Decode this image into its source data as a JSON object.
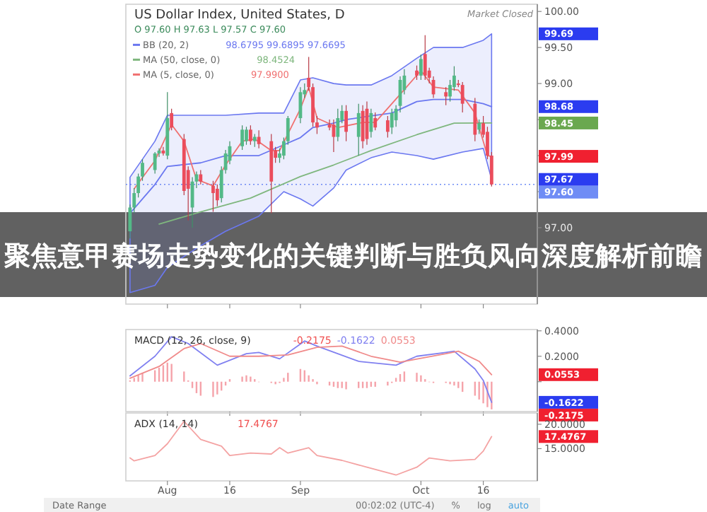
{
  "chart_data": [
    {
      "type": "candlestick",
      "title": "US Dollar Index, United States, D",
      "subtitle": "O 97.60 H 97.63 L 97.57 C 97.60",
      "legend": "top left",
      "tick_labels": "y",
      "annotations": [
        "Market Closed",
        "聚焦意甲赛场走势变化的关键判断与胜负风向深度解析前瞻",
        "98.6795 99.6895 97.6695",
        "98.4524",
        "97.9900",
        "99.69",
        "98.68",
        "97.67",
        "98.45",
        "97.99"
      ],
      "xlim": [
        "--07-22",
        "--10-29"
      ],
      "ylim": [
        95.94,
        100.1
      ],
      "xticks": [
        {
          "value": "--08-01",
          "label": null
        },
        {
          "value": "--08-16",
          "label": null
        },
        {
          "value": "--09-02",
          "label": null
        },
        {
          "value": "--10-01",
          "label": null
        },
        {
          "value": "--10-16",
          "label": null
        }
      ],
      "yticks": [
        {
          "value": 100,
          "label": "100.00"
        },
        {
          "value": 99.5,
          "label": "99.50"
        },
        {
          "value": 99,
          "label": "99.00"
        },
        {
          "value": 98.5,
          "label": null
        },
        {
          "value": 98,
          "label": null
        },
        {
          "value": 97.5,
          "label": null
        },
        {
          "value": 97,
          "label": "97.00"
        }
      ],
      "ref_lines": [
        {
          "axis": "y",
          "value": 97.6,
          "label": "97.60",
          "color": "#6f8cf5",
          "line_style": "dotted"
        }
      ],
      "x": [
        "--07-23",
        "--07-24",
        "--07-25",
        "--07-26",
        "--07-29",
        "--07-30",
        "--07-31",
        "--08-01",
        "--08-02",
        "--08-05",
        "--08-06",
        "--08-07",
        "--08-08",
        "--08-09",
        "--08-12",
        "--08-13",
        "--08-14",
        "--08-15",
        "--08-16",
        "--08-19",
        "--08-20",
        "--08-21",
        "--08-22",
        "--08-23",
        "--08-26",
        "--08-27",
        "--08-28",
        "--08-29",
        "--08-30",
        "--09-02",
        "--09-03",
        "--09-04",
        "--09-05",
        "--09-06",
        "--09-09",
        "--09-10",
        "--09-11",
        "--09-12",
        "--09-13",
        "--09-16",
        "--09-17",
        "--09-18",
        "--09-19",
        "--09-20",
        "--09-23",
        "--09-24",
        "--09-25",
        "--09-26",
        "--09-27",
        "--09-30",
        "--10-01",
        "--10-02",
        "--10-03",
        "--10-04",
        "--10-07",
        "--10-08",
        "--10-09",
        "--10-10",
        "--10-11",
        "--10-14",
        "--10-15",
        "--10-16",
        "--10-17",
        "--10-18"
      ],
      "ohlc": [
        [
          96.95,
          97.32,
          96.85,
          97.28
        ],
        [
          97.28,
          97.55,
          97.2,
          97.48
        ],
        [
          97.48,
          97.75,
          97.42,
          97.71
        ],
        [
          97.71,
          97.95,
          97.65,
          97.9
        ],
        [
          97.8,
          98.05,
          97.75,
          98.03
        ],
        [
          98.03,
          98.1,
          97.98,
          98.07
        ],
        [
          98.07,
          98.12,
          98.0,
          98.03
        ],
        [
          98.0,
          98.88,
          97.95,
          98.52
        ],
        [
          98.59,
          98.65,
          98.35,
          98.39
        ],
        [
          98.23,
          98.3,
          97.45,
          97.51
        ],
        [
          97.8,
          97.85,
          97.1,
          97.54
        ],
        [
          97.28,
          97.7,
          97.0,
          97.64
        ],
        [
          97.64,
          97.78,
          97.55,
          97.74
        ],
        [
          97.74,
          97.8,
          97.6,
          97.64
        ],
        [
          97.58,
          97.65,
          97.22,
          97.48
        ],
        [
          97.54,
          97.6,
          97.3,
          97.38
        ],
        [
          97.41,
          97.85,
          97.35,
          97.8
        ],
        [
          97.8,
          98.08,
          97.75,
          98.03
        ],
        [
          97.93,
          98.2,
          97.88,
          98.13
        ],
        [
          98.13,
          98.42,
          98.08,
          98.36
        ],
        [
          98.2,
          98.4,
          98.15,
          98.36
        ],
        [
          98.36,
          98.42,
          98.15,
          98.2
        ],
        [
          98.2,
          98.3,
          98.12,
          98.26
        ],
        [
          98.26,
          98.35,
          98.1,
          98.16
        ],
        [
          98.2,
          98.3,
          97.2,
          97.64
        ],
        [
          98.07,
          98.12,
          97.9,
          97.97
        ],
        [
          97.97,
          98.1,
          97.9,
          98.03
        ],
        [
          98.0,
          98.25,
          97.95,
          98.2
        ],
        [
          98.2,
          98.55,
          98.15,
          98.52
        ],
        [
          98.52,
          98.95,
          98.45,
          98.88
        ],
        [
          98.85,
          99.0,
          98.8,
          98.91
        ],
        [
          99.08,
          99.37,
          98.9,
          98.95
        ],
        [
          98.95,
          99.0,
          98.4,
          98.46
        ],
        [
          98.46,
          98.55,
          98.3,
          98.39
        ],
        [
          98.43,
          98.5,
          98.35,
          98.39
        ],
        [
          98.43,
          98.5,
          98.05,
          98.26
        ],
        [
          98.26,
          98.65,
          98.2,
          98.52
        ],
        [
          98.49,
          98.7,
          98.45,
          98.62
        ],
        [
          98.62,
          98.7,
          98.2,
          98.33
        ],
        [
          98.26,
          98.72,
          98.0,
          98.59
        ],
        [
          98.62,
          98.7,
          98.1,
          98.2
        ],
        [
          98.65,
          98.75,
          98.15,
          98.23
        ],
        [
          98.33,
          98.65,
          98.25,
          98.59
        ],
        [
          98.52,
          98.6,
          98.35,
          98.39
        ],
        [
          98.49,
          98.55,
          98.25,
          98.33
        ],
        [
          98.39,
          98.65,
          98.3,
          98.59
        ],
        [
          98.49,
          98.7,
          98.4,
          98.65
        ],
        [
          98.69,
          99.1,
          98.6,
          99.05
        ],
        [
          98.91,
          99.2,
          98.85,
          99.11
        ],
        [
          99.18,
          99.25,
          99.05,
          99.11
        ],
        [
          99.11,
          99.4,
          99.05,
          99.34
        ],
        [
          99.41,
          99.67,
          99.05,
          99.11
        ],
        [
          99.18,
          99.22,
          99.0,
          99.08
        ],
        [
          99.05,
          99.1,
          98.8,
          98.85
        ],
        [
          98.88,
          98.95,
          98.7,
          98.82
        ],
        [
          98.82,
          99.05,
          98.75,
          98.98
        ],
        [
          98.95,
          99.24,
          98.9,
          99.11
        ],
        [
          99.0,
          99.05,
          98.95,
          98.98
        ],
        [
          98.98,
          99.02,
          98.6,
          98.72
        ],
        [
          98.72,
          98.8,
          98.2,
          98.29
        ],
        [
          98.36,
          98.5,
          98.3,
          98.45
        ],
        [
          98.45,
          98.55,
          98.25,
          98.29
        ],
        [
          98.33,
          98.4,
          97.95,
          98.0
        ],
        [
          98.0,
          98.05,
          97.57,
          97.6
        ]
      ],
      "series": [
        {
          "type": "line",
          "name": "BB (20, 2)",
          "color": "#6b78f0",
          "x": [
            "--07-23",
            "--07-29",
            "--08-01",
            "--08-09",
            "--08-15",
            "--08-23",
            "--08-29",
            "--09-02",
            "--09-05",
            "--09-10",
            "--09-13",
            "--09-19",
            "--09-24",
            "--09-30",
            "--10-04",
            "--10-11",
            "--10-16",
            "--10-18"
          ],
          "values": [
            97.2,
            97.6,
            97.85,
            97.9,
            98.0,
            98.0,
            98.15,
            98.25,
            98.39,
            98.45,
            98.5,
            98.55,
            98.59,
            98.75,
            98.78,
            98.78,
            98.72,
            98.6795
          ],
          "upper": [
            97.7,
            98.2,
            98.56,
            98.56,
            98.56,
            98.59,
            98.59,
            99.05,
            99.08,
            99.0,
            98.98,
            98.98,
            99.11,
            99.35,
            99.5,
            99.5,
            99.6,
            99.6895
          ],
          "lower": [
            96.1,
            96.2,
            96.45,
            96.75,
            96.95,
            97.16,
            97.5,
            97.4,
            97.3,
            97.55,
            97.8,
            97.97,
            98.05,
            98.0,
            97.95,
            98.05,
            98.1,
            97.6695
          ]
        },
        {
          "type": "line",
          "name": "MA (50, close, 0)",
          "color": "#7fb77e",
          "x": [
            "--07-30",
            "--08-09",
            "--08-21",
            "--09-02",
            "--09-10",
            "--09-19",
            "--09-30",
            "--10-09",
            "--10-18"
          ],
          "values": [
            97.05,
            97.22,
            97.41,
            97.71,
            97.87,
            98.07,
            98.29,
            98.45,
            98.4524
          ]
        },
        {
          "type": "line",
          "name": "MA (5, close, 0)",
          "color": "#f07070",
          "x": [
            "--07-24",
            "--07-29",
            "--08-02",
            "--08-05",
            "--08-08",
            "--08-12",
            "--08-15",
            "--08-19",
            "--08-22",
            "--08-26",
            "--08-28",
            "--09-02",
            "--09-04",
            "--09-06",
            "--09-11",
            "--09-17",
            "--09-20",
            "--09-26",
            "--10-01",
            "--10-04",
            "--10-10",
            "--10-14",
            "--10-17",
            "--10-18"
          ],
          "values": [
            97.54,
            97.93,
            98.43,
            98.2,
            97.67,
            97.58,
            97.87,
            98.2,
            98.23,
            98.07,
            98.07,
            98.65,
            98.95,
            98.52,
            98.39,
            98.46,
            98.46,
            98.85,
            99.18,
            98.95,
            98.91,
            98.59,
            98.0,
            97.99
          ]
        }
      ]
    },
    {
      "type": "line",
      "title": "MACD (12, 26, close, 9)",
      "tick_labels": "y",
      "annotations": [
        "-0.2175",
        "-0.1622",
        "0.0553",
        "-0.2175",
        "-0.1622",
        "0.0553"
      ],
      "xlim": [
        "--07-22",
        "--10-29"
      ],
      "ylim": [
        -0.235,
        0.41
      ],
      "xticks": [
        {
          "value": "--08-01",
          "label": null
        },
        {
          "value": "--08-16",
          "label": null
        },
        {
          "value": "--09-02",
          "label": null
        },
        {
          "value": "--10-01",
          "label": null
        },
        {
          "value": "--10-16",
          "label": null
        }
      ],
      "yticks": [
        {
          "value": 0.4,
          "label": "0.4000"
        },
        {
          "value": 0.2,
          "label": "0.2000"
        },
        {
          "value": 0,
          "label": null
        }
      ],
      "x": [
        "--07-23",
        "--07-24",
        "--07-25",
        "--07-26",
        "--07-29",
        "--07-30",
        "--07-31",
        "--08-01",
        "--08-02",
        "--08-05",
        "--08-06",
        "--08-07",
        "--08-08",
        "--08-09",
        "--08-12",
        "--08-13",
        "--08-14",
        "--08-15",
        "--08-16",
        "--08-19",
        "--08-20",
        "--08-21",
        "--08-22",
        "--08-23",
        "--08-26",
        "--08-27",
        "--08-28",
        "--08-29",
        "--08-30",
        "--09-02",
        "--09-03",
        "--09-04",
        "--09-05",
        "--09-06",
        "--09-09",
        "--09-10",
        "--09-11",
        "--09-12",
        "--09-13",
        "--09-16",
        "--09-17",
        "--09-18",
        "--09-19",
        "--09-20",
        "--09-23",
        "--09-24",
        "--09-25",
        "--09-26",
        "--09-27",
        "--09-30",
        "--10-01",
        "--10-02",
        "--10-03",
        "--10-04",
        "--10-07",
        "--10-08",
        "--10-09",
        "--10-10",
        "--10-11",
        "--10-14",
        "--10-15",
        "--10-16",
        "--10-17",
        "--10-18"
      ],
      "series": [
        {
          "type": "bar",
          "color": "#f5a3aa",
          "values": [
            0.01,
            0.03,
            0.05,
            0.07,
            0.09,
            0.11,
            0.13,
            0.15,
            0.14,
            0.08,
            0.01,
            -0.05,
            -0.09,
            -0.11,
            -0.12,
            -0.1,
            -0.07,
            -0.03,
            0.02,
            0.04,
            0.05,
            0.04,
            0.02,
            0.0,
            -0.01,
            -0.02,
            -0.01,
            0.03,
            0.07,
            0.1,
            0.09,
            0.05,
            0.02,
            -0.02,
            -0.03,
            -0.04,
            -0.05,
            -0.05,
            -0.06,
            -0.05,
            -0.05,
            -0.05,
            -0.04,
            -0.04,
            -0.03,
            -0.01,
            0.03,
            0.06,
            0.08,
            0.07,
            0.05,
            0.02,
            0.0,
            -0.01,
            -0.01,
            -0.02,
            -0.03,
            -0.05,
            -0.08,
            -0.11,
            -0.14,
            -0.17,
            -0.2,
            -0.2175
          ]
        },
        {
          "type": "line",
          "color": "#8080f0",
          "x": [
            "--07-23",
            "--07-29",
            "--08-02",
            "--08-06",
            "--08-13",
            "--08-20",
            "--08-23",
            "--08-28",
            "--09-03",
            "--09-06",
            "--09-16",
            "--09-25",
            "--09-30",
            "--10-07",
            "--10-09",
            "--10-14",
            "--10-16",
            "--10-18"
          ],
          "values": [
            0.046,
            0.2,
            0.354,
            0.3,
            0.13,
            0.22,
            0.23,
            0.18,
            0.32,
            0.28,
            0.16,
            0.13,
            0.2,
            0.23,
            0.24,
            0.1,
            0.01,
            -0.1622
          ]
        },
        {
          "type": "line",
          "color": "#f08a8a",
          "x": [
            "--07-23",
            "--07-30",
            "--08-05",
            "--08-09",
            "--08-16",
            "--08-23",
            "--08-30",
            "--09-06",
            "--09-12",
            "--09-19",
            "--09-26",
            "--10-07",
            "--10-10",
            "--10-15",
            "--10-18"
          ],
          "values": [
            0.027,
            0.12,
            0.26,
            0.3,
            0.2,
            0.2,
            0.21,
            0.27,
            0.28,
            0.2,
            0.154,
            0.22,
            0.24,
            0.16,
            0.0553
          ]
        }
      ]
    },
    {
      "type": "line",
      "title": "ADX (14, 14)",
      "annotations": [
        "17.4767",
        "17.4767",
        "Date Range",
        "00:02:02 (UTC-4)",
        "%",
        "log",
        "auto"
      ],
      "xlim": [
        "--07-22",
        "--10-29"
      ],
      "ylim": [
        8.4,
        22.3
      ],
      "xticks": [
        {
          "value": "--08-01",
          "label": "Aug"
        },
        {
          "value": "--08-16",
          "label": "16"
        },
        {
          "value": "--09-02",
          "label": "Sep"
        },
        {
          "value": "--10-01",
          "label": "Oct"
        },
        {
          "value": "--10-16",
          "label": "16"
        }
      ],
      "yticks": [
        {
          "value": 20,
          "label": "20.0000"
        },
        {
          "value": 15,
          "label": "15.0000"
        }
      ],
      "series": [
        {
          "type": "line",
          "color": "#f4a3a3",
          "x": [
            "--07-23",
            "--07-24",
            "--07-29",
            "--08-01",
            "--08-05",
            "--08-09",
            "--08-14",
            "--08-16",
            "--08-21",
            "--08-26",
            "--08-28",
            "--08-30",
            "--09-04",
            "--09-06",
            "--09-12",
            "--09-18",
            "--09-25",
            "--09-30",
            "--10-03",
            "--10-08",
            "--10-14",
            "--10-16",
            "--10-18"
          ],
          "values": [
            13.1,
            12.5,
            13.6,
            16.0,
            20.6,
            16.9,
            15.5,
            13.6,
            14.1,
            13.9,
            15.2,
            14.1,
            15.2,
            13.6,
            12.6,
            11.2,
            9.6,
            11.2,
            13.1,
            12.5,
            12.8,
            14.5,
            17.4767
          ]
        }
      ]
    }
  ]
}
